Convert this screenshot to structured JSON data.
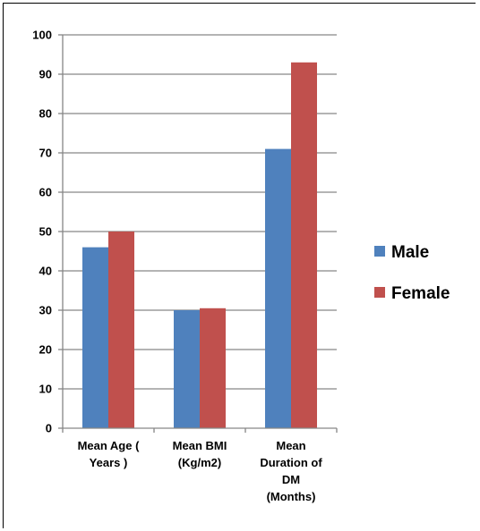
{
  "chart_data": {
    "type": "bar",
    "categories": [
      [
        "Mean Age (",
        "Years )"
      ],
      [
        "Mean BMI",
        "(Kg/m2)"
      ],
      [
        "Mean",
        "Duration of",
        "DM",
        "(Months)"
      ]
    ],
    "series": [
      {
        "name": "Male",
        "values": [
          46,
          30,
          71
        ],
        "color": "#4f81bd"
      },
      {
        "name": "Female",
        "values": [
          50,
          30.5,
          93
        ],
        "color": "#c0504d"
      }
    ],
    "ylim": [
      0,
      100
    ],
    "yticks": [
      0,
      10,
      20,
      30,
      40,
      50,
      60,
      70,
      80,
      90,
      100
    ],
    "grid": true,
    "legend": "right"
  }
}
